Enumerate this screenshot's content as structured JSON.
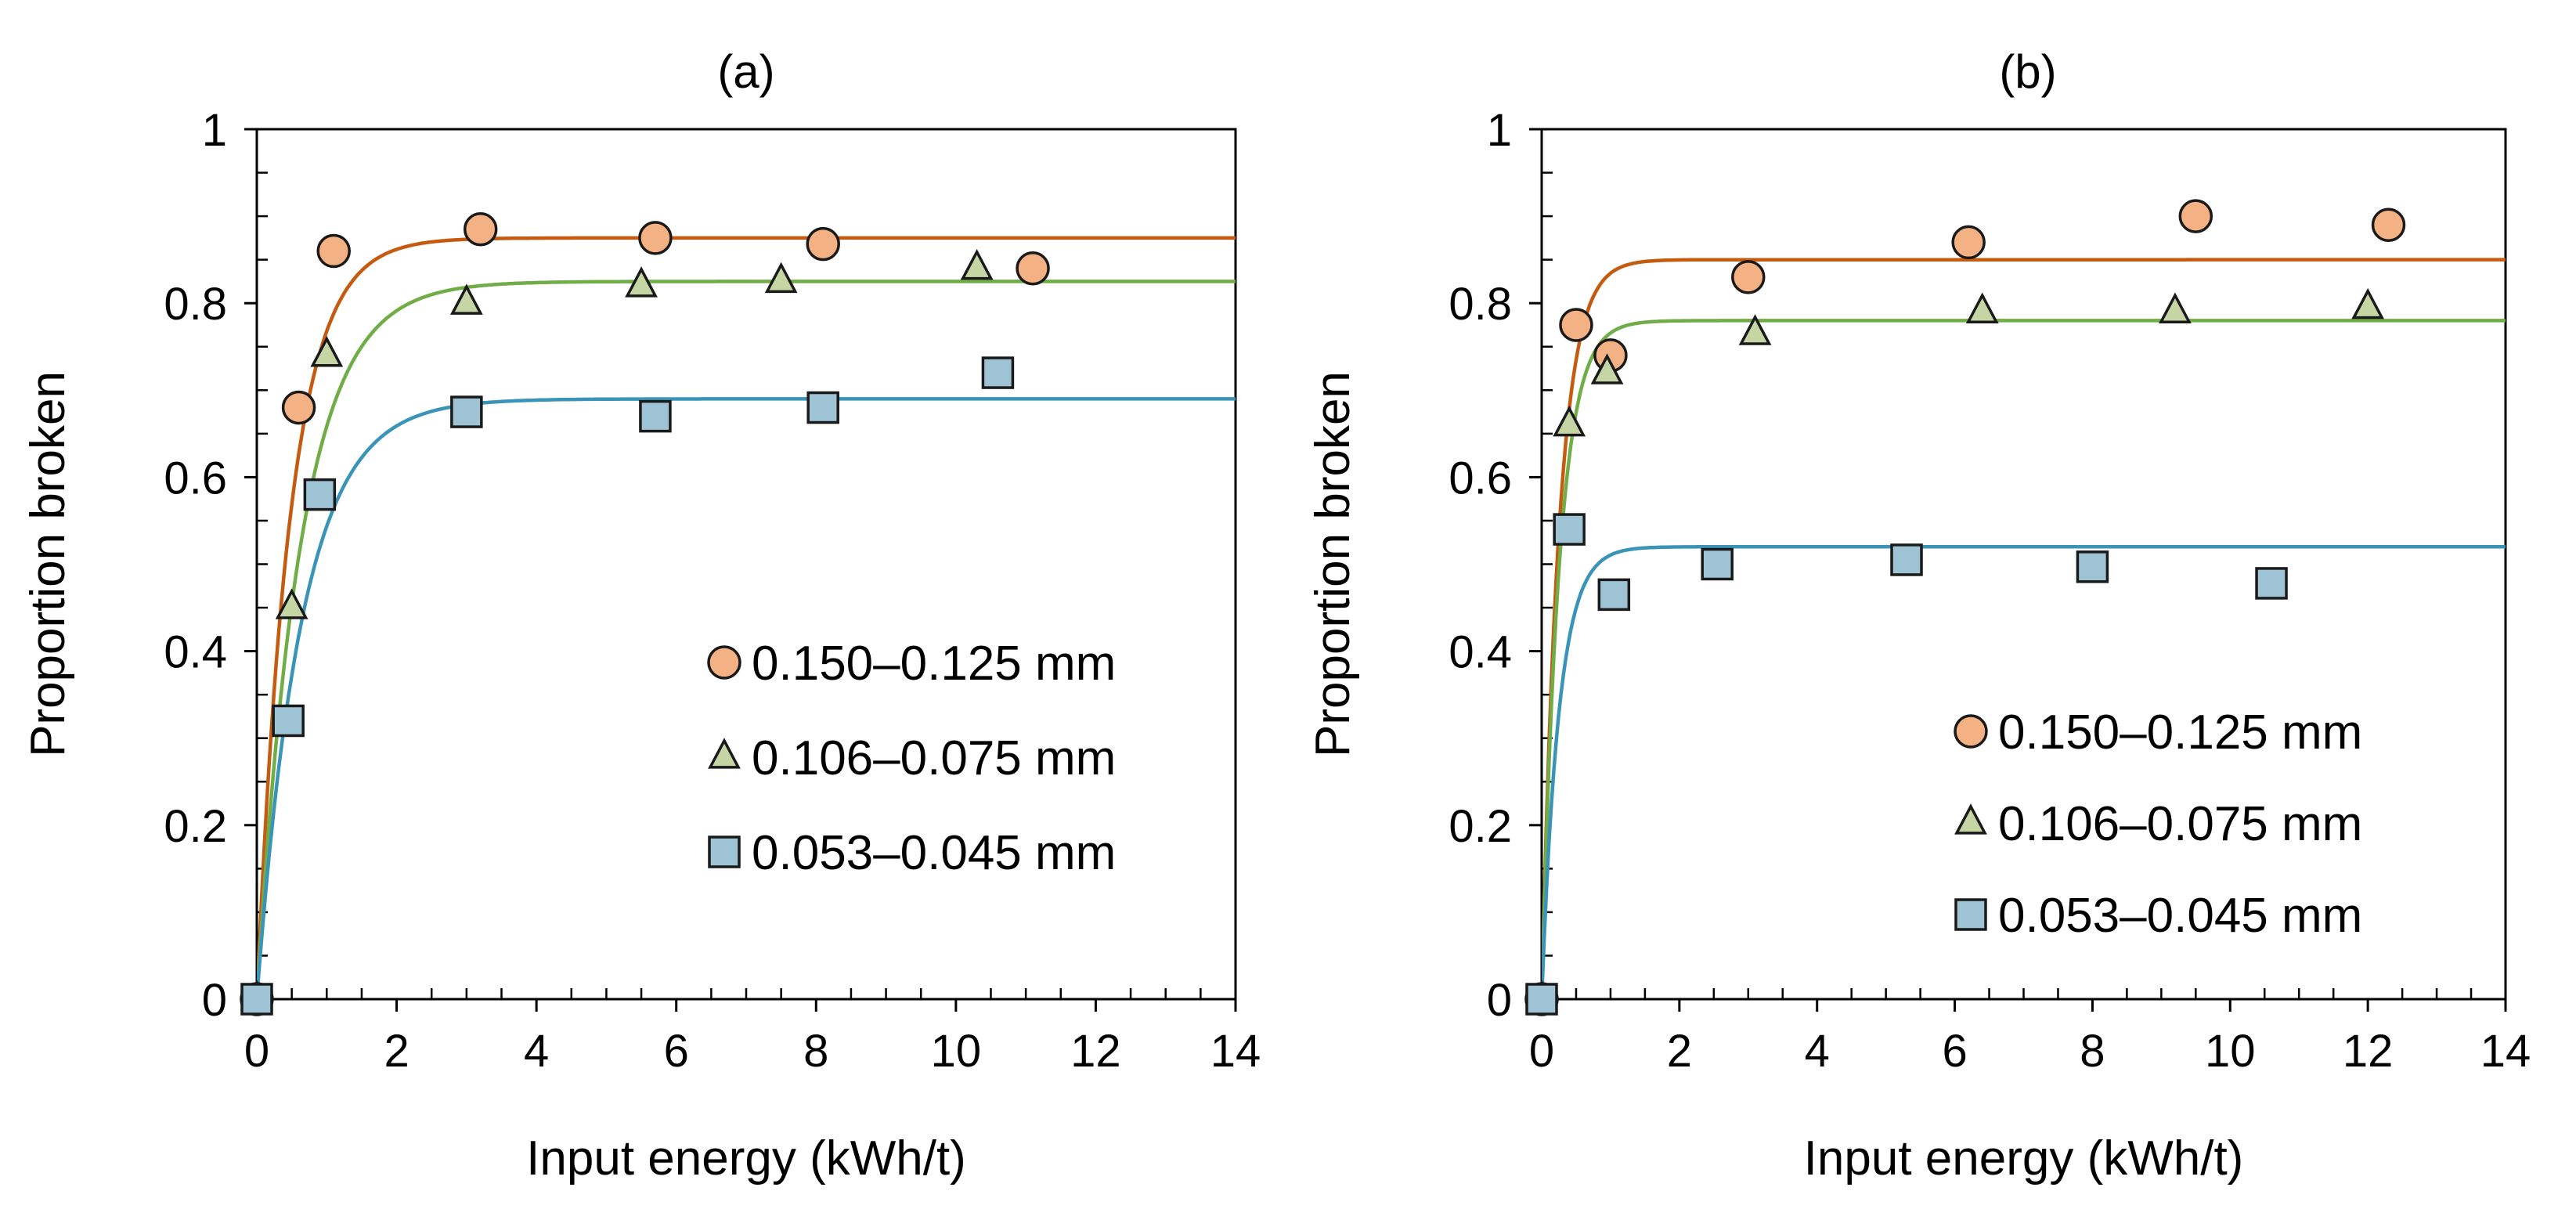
{
  "chart_data": [
    {
      "type": "scatter",
      "title": "(a)",
      "xlabel": "Input energy (kWh/t)",
      "ylabel": "Proportion broken",
      "xlim": [
        0,
        14
      ],
      "ylim": [
        0,
        1
      ],
      "xticks": [
        0,
        2,
        4,
        6,
        8,
        10,
        12,
        14
      ],
      "yticks": [
        0,
        0.2,
        0.4,
        0.6,
        0.8,
        1
      ],
      "xtick_labels": [
        "0",
        "2",
        "4",
        "6",
        "8",
        "10",
        "12",
        "14"
      ],
      "ytick_labels": [
        "0",
        "0.2",
        "0.4",
        "0.6",
        "0.8",
        "1"
      ],
      "legend_position": "right",
      "series": [
        {
          "name": "0.150–0.125 mm",
          "marker": "circle",
          "fill": "#F4B183",
          "line_color": "#C55A11",
          "x": [
            0,
            0.6,
            1.1,
            3.2,
            5.7,
            8.1,
            11.1
          ],
          "y": [
            0,
            0.68,
            0.86,
            0.885,
            0.875,
            0.868,
            0.84
          ],
          "fit": {
            "asymptote": 0.875,
            "rate": 2.1
          }
        },
        {
          "name": "0.106–0.075 mm",
          "marker": "triangle",
          "fill": "#C5D6A4",
          "line_color": "#70AD47",
          "x": [
            0,
            0.5,
            1.0,
            3.0,
            5.5,
            7.5,
            10.3
          ],
          "y": [
            0,
            0.45,
            0.74,
            0.8,
            0.82,
            0.825,
            0.84
          ],
          "fit": {
            "asymptote": 0.825,
            "rate": 1.6
          }
        },
        {
          "name": "0.053–0.045 mm",
          "marker": "square",
          "fill": "#9DC3D4",
          "line_color": "#3A94B8",
          "x": [
            0,
            0.45,
            0.9,
            3.0,
            5.7,
            8.1,
            10.6
          ],
          "y": [
            0,
            0.32,
            0.58,
            0.675,
            0.67,
            0.68,
            0.72
          ],
          "fit": {
            "asymptote": 0.69,
            "rate": 1.55
          }
        }
      ]
    },
    {
      "type": "scatter",
      "title": "(b)",
      "xlabel": "Input energy (kWh/t)",
      "ylabel": "Proportion broken",
      "xlim": [
        0,
        14
      ],
      "ylim": [
        0,
        1
      ],
      "xticks": [
        0,
        2,
        4,
        6,
        8,
        10,
        12,
        14
      ],
      "yticks": [
        0,
        0.2,
        0.4,
        0.6,
        0.8,
        1
      ],
      "xtick_labels": [
        "0",
        "2",
        "4",
        "6",
        "8",
        "10",
        "12",
        "14"
      ],
      "ytick_labels": [
        "0",
        "0.2",
        "0.4",
        "0.6",
        "0.8",
        "1"
      ],
      "legend_position": "right",
      "series": [
        {
          "name": "0.150–0.125 mm",
          "marker": "circle",
          "fill": "#F4B183",
          "line_color": "#C55A11",
          "x": [
            0,
            0.5,
            1.0,
            3.0,
            6.2,
            9.5,
            12.3
          ],
          "y": [
            0,
            0.775,
            0.74,
            0.83,
            0.87,
            0.9,
            0.89
          ],
          "fit": {
            "asymptote": 0.85,
            "rate": 4.0
          }
        },
        {
          "name": "0.106–0.075 mm",
          "marker": "triangle",
          "fill": "#C5D6A4",
          "line_color": "#70AD47",
          "x": [
            0,
            0.4,
            0.95,
            3.1,
            6.4,
            9.2,
            12.0
          ],
          "y": [
            0,
            0.66,
            0.72,
            0.765,
            0.79,
            0.79,
            0.795
          ],
          "fit": {
            "asymptote": 0.78,
            "rate": 4.0
          }
        },
        {
          "name": "0.053–0.045 mm",
          "marker": "square",
          "fill": "#9DC3D4",
          "line_color": "#3A94B8",
          "x": [
            0,
            0.4,
            1.05,
            2.55,
            5.3,
            8.0,
            10.6
          ],
          "y": [
            0,
            0.54,
            0.465,
            0.5,
            0.505,
            0.497,
            0.478
          ],
          "fit": {
            "asymptote": 0.52,
            "rate": 4.0
          }
        }
      ]
    }
  ]
}
